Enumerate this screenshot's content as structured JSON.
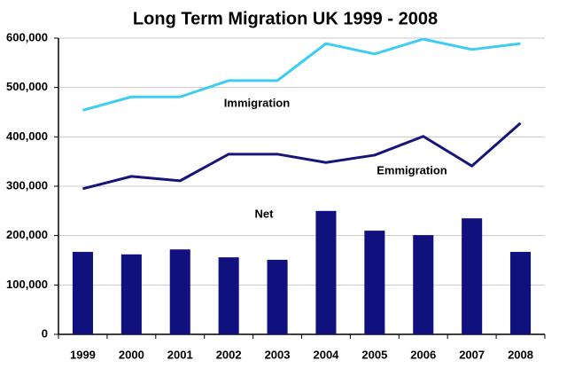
{
  "chart_data": {
    "type": "combo",
    "title": "Long Term Migration UK 1999 - 2008",
    "categories": [
      "1999",
      "2000",
      "2001",
      "2002",
      "2003",
      "2004",
      "2005",
      "2006",
      "2007",
      "2008"
    ],
    "series": [
      {
        "name": "Net",
        "type": "bar",
        "color": "#10107e",
        "values": [
          167000,
          162000,
          172000,
          156000,
          151000,
          250000,
          210000,
          201000,
          235000,
          167000
        ]
      },
      {
        "name": "Immigration",
        "type": "line",
        "color": "#3ccdf0",
        "values": [
          454000,
          481000,
          481000,
          514000,
          514000,
          589000,
          568000,
          598000,
          577000,
          589000
        ]
      },
      {
        "name": "Emmigration",
        "type": "line",
        "color": "#16167a",
        "values": [
          295000,
          320000,
          311000,
          365000,
          365000,
          348000,
          363000,
          401000,
          341000,
          428000
        ]
      }
    ],
    "ylim": [
      0,
      600000
    ],
    "yticks": [
      0,
      {
        "value": 100000,
        "label": "100,000"
      },
      {
        "value": 200000,
        "label": "200,000"
      },
      {
        "value": 300000,
        "label": "300,000"
      },
      {
        "value": 400000,
        "label": "400,000"
      },
      {
        "value": 500000,
        "label": "500,000"
      },
      {
        "value": 600000,
        "label": "600,000"
      }
    ],
    "grid": true
  }
}
